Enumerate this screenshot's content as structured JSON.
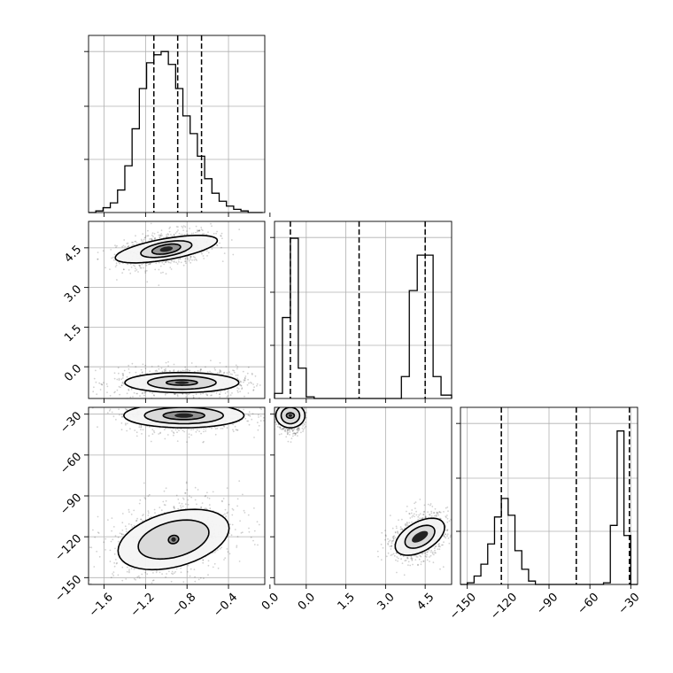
{
  "chart_data": [
    {
      "type": "histogram",
      "panel": "p1",
      "xlim": [
        -1.75,
        -0.05
      ],
      "ylim": [
        0,
        1.1
      ],
      "x_ticks": [
        -1.6,
        -1.2,
        -0.8,
        -0.4,
        0.0
      ],
      "x_tick_labels": [
        "−1.6",
        "−1.2",
        "−0.8",
        "−0.4",
        "0.0"
      ],
      "quantiles": [
        -1.12,
        -0.89,
        -0.66
      ],
      "bin_edges": [
        -1.75,
        -1.68,
        -1.61,
        -1.54,
        -1.47,
        -1.4,
        -1.33,
        -1.26,
        -1.19,
        -1.12,
        -1.05,
        -0.98,
        -0.91,
        -0.84,
        -0.77,
        -0.7,
        -0.63,
        -0.56,
        -0.49,
        -0.42,
        -0.35,
        -0.28,
        -0.21,
        -0.14,
        -0.07
      ],
      "counts": [
        0.0,
        0.01,
        0.03,
        0.06,
        0.14,
        0.29,
        0.52,
        0.77,
        0.93,
        0.98,
        1.0,
        0.92,
        0.77,
        0.6,
        0.49,
        0.35,
        0.21,
        0.12,
        0.07,
        0.04,
        0.02,
        0.01,
        0.0,
        0.0
      ]
    },
    {
      "type": "histogram",
      "panel": "p2",
      "xlim": [
        -1.2,
        5.5
      ],
      "ylim": [
        0,
        1.05
      ],
      "quantiles": [
        -0.6,
        2.0,
        4.5
      ],
      "bin_edges": [
        -1.2,
        -0.9,
        -0.6,
        -0.3,
        0.0,
        0.3,
        0.6,
        0.9,
        1.2,
        1.5,
        1.8,
        2.1,
        2.4,
        2.7,
        3.0,
        3.3,
        3.6,
        3.9,
        4.2,
        4.5,
        4.8,
        5.1,
        5.5
      ],
      "counts": [
        0.03,
        0.48,
        0.95,
        0.18,
        0.01,
        0.0,
        0.0,
        0.0,
        0.0,
        0.0,
        0.0,
        0.0,
        0.0,
        0.0,
        0.0,
        0.0,
        0.13,
        0.64,
        0.85,
        0.85,
        0.13,
        0.02
      ]
    },
    {
      "type": "histogram",
      "panel": "p3",
      "x_ticks": [
        -150,
        -120,
        -90,
        -60,
        -30
      ],
      "x_tick_labels": [
        "−150",
        "−120",
        "−90",
        "−60",
        "−30"
      ],
      "xlim": [
        -155,
        -25
      ],
      "ylim": [
        0,
        1.05
      ],
      "quantiles": [
        -125,
        -70,
        -31
      ],
      "bin_edges": [
        -155,
        -150,
        -145,
        -140,
        -135,
        -130,
        -125,
        -120,
        -115,
        -110,
        -105,
        -100,
        -95,
        -90,
        -85,
        -80,
        -75,
        -70,
        -65,
        -60,
        -55,
        -50,
        -45,
        -40,
        -35,
        -30,
        -25
      ],
      "counts": [
        0.0,
        0.01,
        0.05,
        0.12,
        0.24,
        0.4,
        0.51,
        0.41,
        0.2,
        0.09,
        0.02,
        0.0,
        0.0,
        0.0,
        0.0,
        0.0,
        0.0,
        0.0,
        0.0,
        0.0,
        0.0,
        0.01,
        0.35,
        0.91,
        0.29,
        0.0
      ]
    },
    {
      "type": "scatter",
      "panel": "p4",
      "xlim": [
        -1.75,
        -0.05
      ],
      "ylim": [
        -1.2,
        5.5
      ],
      "y_ticks": [
        0.0,
        1.5,
        3.0,
        4.5
      ],
      "y_tick_labels": [
        "0.0",
        "1.5",
        "3.0",
        "4.5"
      ],
      "clusters": [
        {
          "cx": -1.0,
          "cy": 4.45,
          "sx": 0.2,
          "sy": 0.28,
          "rot": -10,
          "levels": [
            [
              0.5,
              0.4
            ],
            [
              0.25,
              0.27
            ],
            [
              0.14,
              0.17
            ]
          ]
        },
        {
          "cx": -0.85,
          "cy": -0.6,
          "sx": 0.28,
          "sy": 0.25,
          "rot": 0,
          "levels": [
            [
              0.55,
              0.38
            ],
            [
              0.33,
              0.25
            ],
            [
              0.15,
              0.1
            ]
          ]
        }
      ]
    },
    {
      "type": "scatter",
      "panel": "p5",
      "xlim": [
        -1.75,
        -0.05
      ],
      "ylim": [
        -155,
        -25
      ],
      "y_ticks": [
        -150,
        -120,
        -90,
        -60,
        -30
      ],
      "y_tick_labels": [
        "−150",
        "−120",
        "−90",
        "−60",
        "−30"
      ],
      "x_ticks": [
        -1.6,
        -1.2,
        -0.8,
        -0.4,
        0.0
      ],
      "x_tick_labels": [
        "−1.6",
        "−1.2",
        "−0.8",
        "−0.4",
        "0.0"
      ],
      "clusters": [
        {
          "cx": -0.83,
          "cy": -31,
          "sx": 0.26,
          "sy": 5.5,
          "rot": 0,
          "levels": [
            [
              0.58,
              9
            ],
            [
              0.38,
              6
            ],
            [
              0.2,
              3
            ]
          ]
        },
        {
          "cx": -0.93,
          "cy": -122,
          "sx": 0.28,
          "sy": 12,
          "rot": -15,
          "levels": [
            [
              0.55,
              20
            ],
            [
              0.35,
              13
            ],
            [
              0.05,
              3
            ]
          ]
        }
      ]
    },
    {
      "type": "scatter",
      "panel": "p6",
      "xlim": [
        -1.2,
        5.5
      ],
      "ylim": [
        -155,
        -25
      ],
      "x_ticks": [
        0.0,
        1.5,
        3.0,
        4.5
      ],
      "x_tick_labels": [
        "0.0",
        "1.5",
        "3.0",
        "4.5"
      ],
      "clusters": [
        {
          "cx": -0.6,
          "cy": -31,
          "sx": 0.22,
          "sy": 5,
          "rot": 0,
          "levels": [
            [
              0.55,
              9
            ],
            [
              0.35,
              6
            ],
            [
              0.15,
              2
            ]
          ]
        },
        {
          "cx": 4.3,
          "cy": -120,
          "sx": 0.35,
          "sy": 10,
          "rot": 60,
          "levels": [
            [
              0.55,
              20
            ],
            [
              0.35,
              12
            ]
          ]
        }
      ]
    }
  ]
}
